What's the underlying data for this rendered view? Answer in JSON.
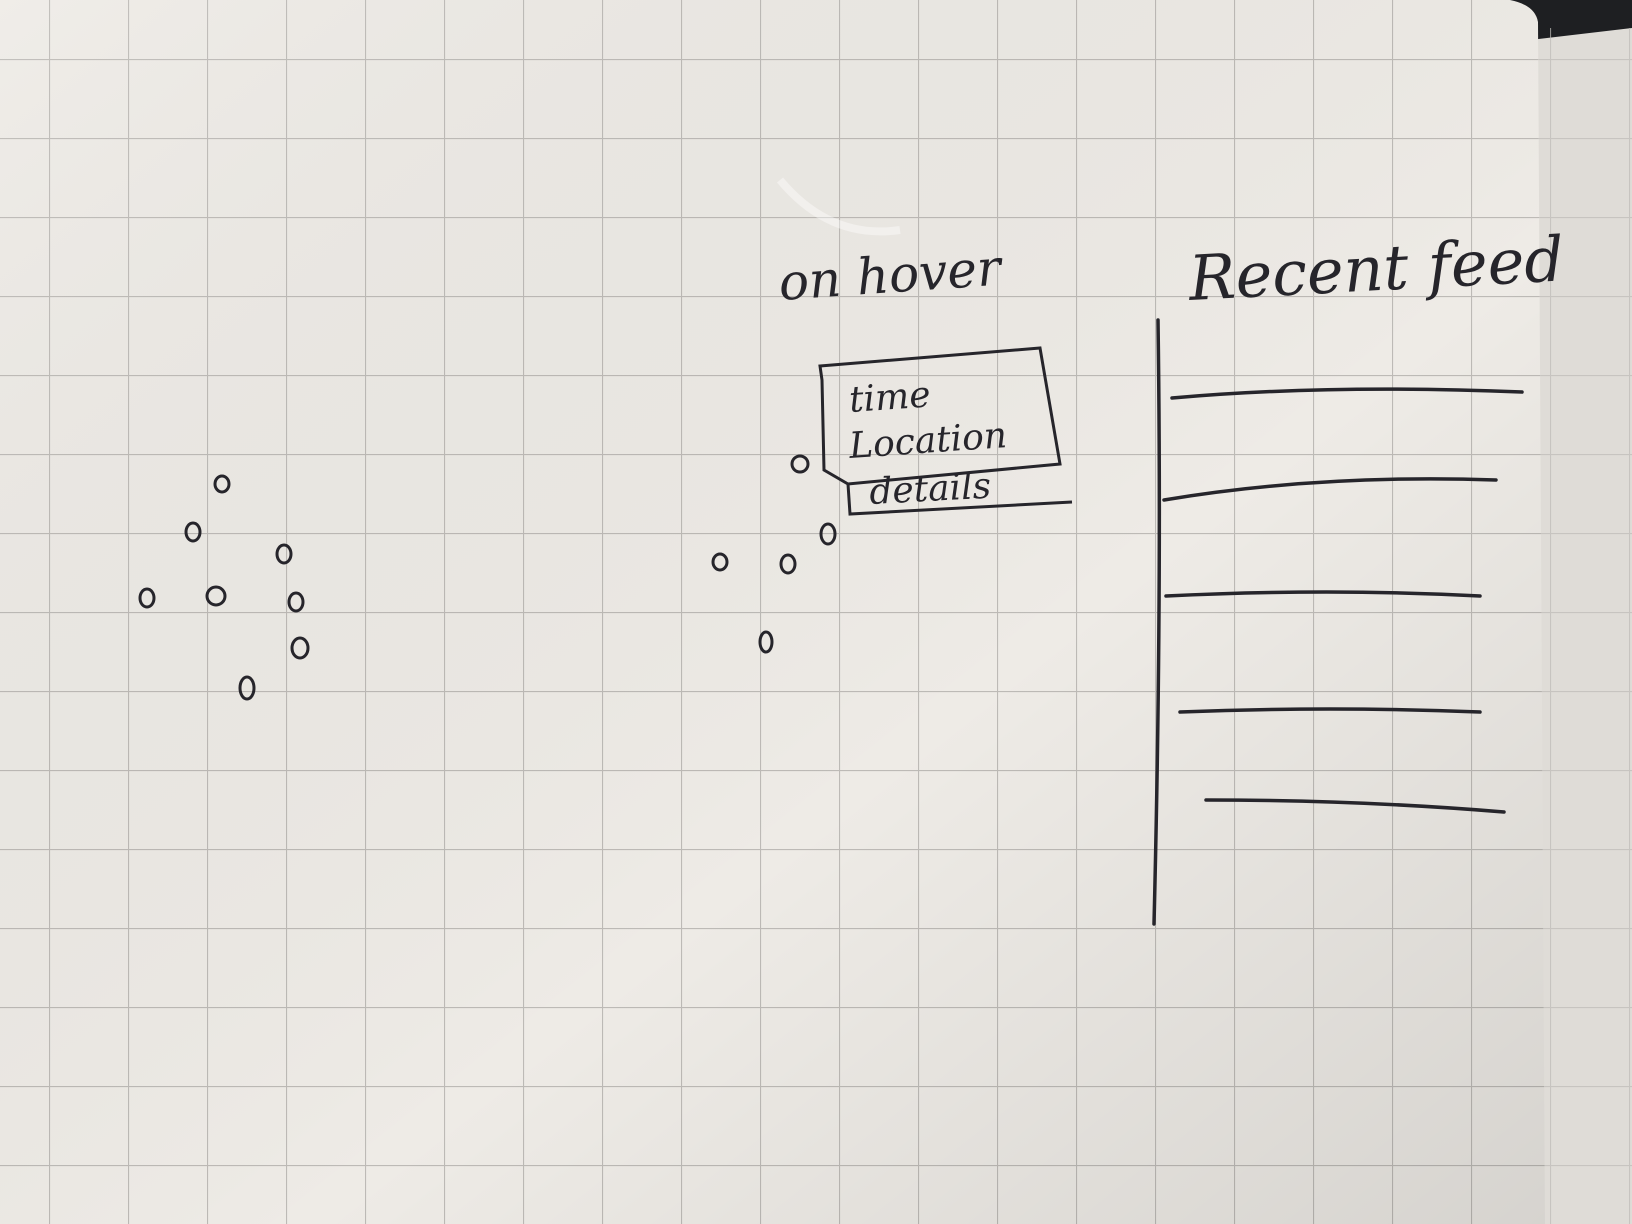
{
  "notebook": {
    "paper_color": "#eeebe6",
    "grid_color": "#bdbab6",
    "ink_color": "#26252b",
    "background_color": "#1e1f22"
  },
  "sketch": {
    "hover_label": "on hover",
    "tooltip_lines": [
      "time",
      "Location",
      "details"
    ],
    "feed_title": "Recent feed"
  }
}
